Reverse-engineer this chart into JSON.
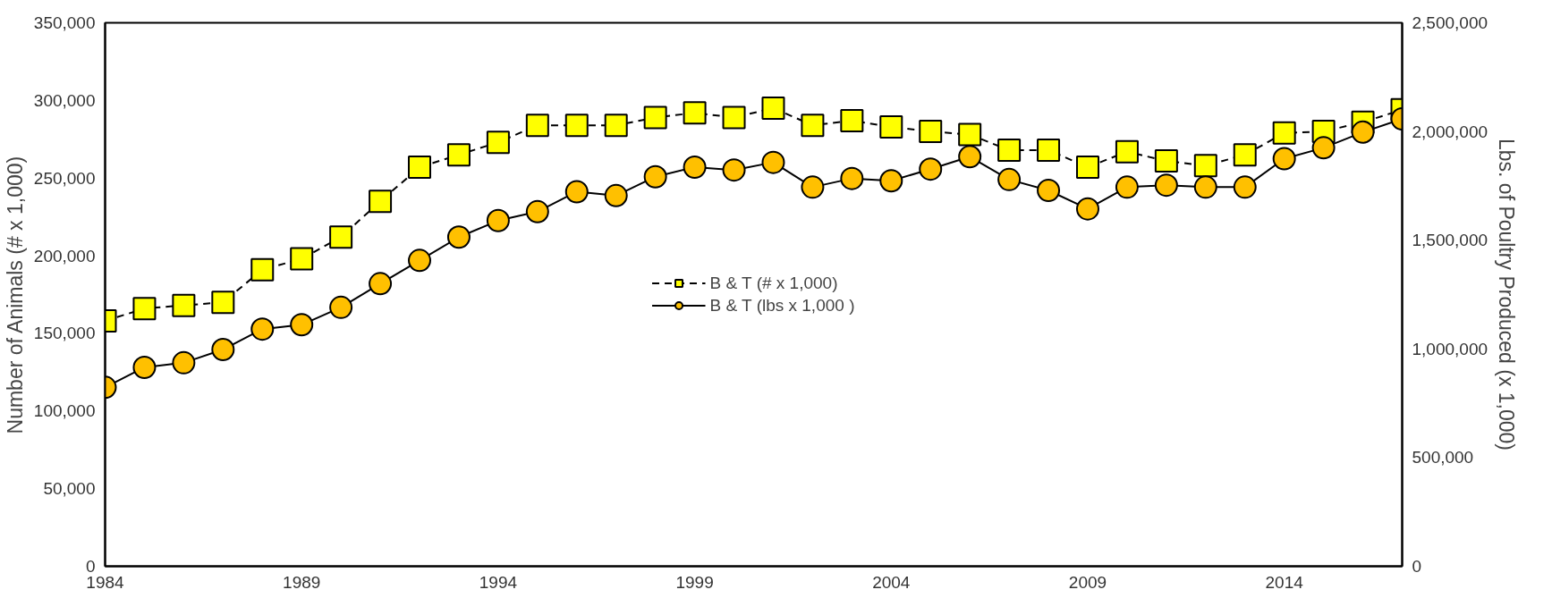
{
  "chart_data": {
    "type": "line",
    "ylabel": "Number of Animals (# x 1,000)",
    "y2label": "Lbs. of Poultry Produced (x 1,000)",
    "x": [
      1984,
      1985,
      1986,
      1987,
      1988,
      1989,
      1990,
      1991,
      1992,
      1993,
      1994,
      1995,
      1996,
      1997,
      1998,
      1999,
      2000,
      2001,
      2002,
      2003,
      2004,
      2005,
      2006,
      2007,
      2008,
      2009,
      2010,
      2011,
      2012,
      2013,
      2014,
      2015,
      2016,
      2017
    ],
    "xlim": [
      1984,
      2017
    ],
    "xticks": [
      1984,
      1989,
      1994,
      1999,
      2004,
      2009,
      2014
    ],
    "ylim": [
      0,
      350000
    ],
    "yticks": [
      {
        "value": 0,
        "label": "0"
      },
      {
        "value": 50000,
        "label": "50,000"
      },
      {
        "value": 100000,
        "label": "100,000"
      },
      {
        "value": 150000,
        "label": "150,000"
      },
      {
        "value": 200000,
        "label": "200,000"
      },
      {
        "value": 250000,
        "label": "250,000"
      },
      {
        "value": 300000,
        "label": "300,000"
      },
      {
        "value": 350000,
        "label": "350,000"
      }
    ],
    "y2lim": [
      0,
      2500000
    ],
    "y2ticks": [
      {
        "value": 0,
        "label": "0"
      },
      {
        "value": 500000,
        "label": "500,000"
      },
      {
        "value": 1000000,
        "label": "1,000,000"
      },
      {
        "value": 1500000,
        "label": "1,500,000"
      },
      {
        "value": 2000000,
        "label": "2,000,000"
      },
      {
        "value": 2500000,
        "label": "2,500,000"
      }
    ],
    "grid": false,
    "legend": "center",
    "series": [
      {
        "name": "B & T (# x 1,000)",
        "color": "#ffff00",
        "marker": "square",
        "line_style": "dashed",
        "values": [
          158000,
          166000,
          168000,
          170000,
          191000,
          198000,
          212000,
          235000,
          257000,
          265000,
          273000,
          284000,
          284000,
          284000,
          289000,
          292000,
          289000,
          295000,
          284000,
          287000,
          283000,
          280000,
          278000,
          268000,
          268000,
          257000,
          267000,
          261000,
          258000,
          265000,
          279000,
          280000,
          286000,
          294000
        ]
      },
      {
        "name": "B & T (lbs x 1,000 )",
        "color": "#ffc000",
        "marker": "circle",
        "line_style": "solid",
        "axis": "y2",
        "values": [
          823000,
          915000,
          936000,
          997000,
          1091000,
          1111000,
          1191000,
          1300000,
          1407000,
          1514000,
          1590000,
          1631000,
          1723000,
          1705000,
          1792000,
          1836000,
          1823000,
          1858000,
          1744000,
          1784000,
          1773000,
          1827000,
          1884000,
          1779000,
          1729000,
          1644000,
          1744000,
          1753000,
          1744000,
          1744000,
          1875000,
          1925000,
          1997000,
          2058000
        ]
      }
    ]
  }
}
